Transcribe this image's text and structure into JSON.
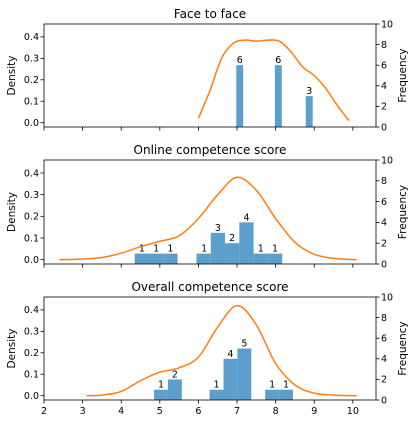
{
  "chart_data": [
    {
      "type": "bar",
      "title": "Face to face",
      "ylabel_left": "Density",
      "ylabel_right": "Frequency",
      "ylim_left": [
        -0.02,
        0.46
      ],
      "yticks_left": [
        "0.0",
        "0.1",
        "0.2",
        "0.3",
        "0.4"
      ],
      "ylim_right": [
        0,
        10
      ],
      "yticks_right": [
        "0",
        "2",
        "4",
        "6",
        "8",
        "10"
      ],
      "xlim": [
        2,
        10.6
      ],
      "bars": [
        {
          "x0": 6.98,
          "x1": 7.16,
          "count": 6,
          "label": "6"
        },
        {
          "x0": 7.98,
          "x1": 8.16,
          "count": 6,
          "label": "6"
        },
        {
          "x0": 8.78,
          "x1": 8.96,
          "count": 3,
          "label": "3"
        }
      ],
      "density": {
        "x": [
          6.0,
          6.3,
          6.6,
          6.9,
          7.2,
          7.5,
          7.8,
          8.1,
          8.4,
          8.7,
          9.0,
          9.3,
          9.6,
          9.9
        ],
        "y": [
          0.02,
          0.15,
          0.3,
          0.37,
          0.385,
          0.38,
          0.385,
          0.38,
          0.33,
          0.26,
          0.22,
          0.16,
          0.08,
          0.01
        ]
      }
    },
    {
      "type": "bar",
      "title": "Online competence score",
      "ylabel_left": "Density",
      "ylabel_right": "Frequency",
      "ylim_left": [
        -0.02,
        0.46
      ],
      "yticks_left": [
        "0.0",
        "0.1",
        "0.2",
        "0.3",
        "0.4"
      ],
      "ylim_right": [
        0,
        10
      ],
      "yticks_right": [
        "0",
        "2",
        "4",
        "6",
        "8",
        "10"
      ],
      "xlim": [
        2,
        10.6
      ],
      "bars": [
        {
          "x0": 4.35,
          "x1": 4.72,
          "count": 1,
          "label": "1"
        },
        {
          "x0": 4.72,
          "x1": 5.09,
          "count": 1,
          "label": "1"
        },
        {
          "x0": 5.09,
          "x1": 5.46,
          "count": 1,
          "label": "1"
        },
        {
          "x0": 5.95,
          "x1": 6.32,
          "count": 1,
          "label": ""
        },
        {
          "x0": 6.32,
          "x1": 6.69,
          "count": 3,
          "label": "3"
        },
        {
          "x0": 6.69,
          "x1": 7.06,
          "count": 2,
          "label": "2"
        },
        {
          "x0": 7.06,
          "x1": 7.43,
          "count": 4,
          "label": "4"
        },
        {
          "x0": 7.43,
          "x1": 7.8,
          "count": 1,
          "label": "1"
        },
        {
          "x0": 7.8,
          "x1": 8.17,
          "count": 1,
          "label": "1"
        }
      ],
      "density": {
        "x": [
          2.4,
          3.0,
          3.5,
          4.0,
          4.5,
          5.0,
          5.5,
          6.0,
          6.5,
          7.0,
          7.5,
          8.0,
          8.5,
          9.0,
          9.5,
          10.1
        ],
        "y": [
          0.0,
          0.003,
          0.01,
          0.03,
          0.06,
          0.085,
          0.11,
          0.19,
          0.3,
          0.38,
          0.32,
          0.19,
          0.08,
          0.025,
          0.006,
          0.0
        ]
      },
      "extra_labels": [
        {
          "x": 6.15,
          "label": "1"
        }
      ]
    },
    {
      "type": "bar",
      "title": "Overall competence score",
      "ylabel_left": "Density",
      "ylabel_right": "Frequency",
      "ylim_left": [
        -0.02,
        0.46
      ],
      "yticks_left": [
        "0.0",
        "0.1",
        "0.2",
        "0.3",
        "0.4"
      ],
      "ylim_right": [
        0,
        10
      ],
      "yticks_right": [
        "0",
        "2",
        "4",
        "6",
        "8",
        "10"
      ],
      "xlim": [
        2,
        10.6
      ],
      "xticks": [
        "2",
        "3",
        "4",
        "5",
        "6",
        "7",
        "8",
        "9",
        "10"
      ],
      "bars": [
        {
          "x0": 4.85,
          "x1": 5.21,
          "count": 1,
          "label": "1"
        },
        {
          "x0": 5.21,
          "x1": 5.57,
          "count": 2,
          "label": "2"
        },
        {
          "x0": 6.29,
          "x1": 6.65,
          "count": 1,
          "label": "1"
        },
        {
          "x0": 6.65,
          "x1": 7.01,
          "count": 4,
          "label": "4"
        },
        {
          "x0": 7.01,
          "x1": 7.37,
          "count": 5,
          "label": "5"
        },
        {
          "x0": 7.73,
          "x1": 8.09,
          "count": 1,
          "label": "1"
        },
        {
          "x0": 8.09,
          "x1": 8.45,
          "count": 1,
          "label": "1"
        }
      ],
      "density": {
        "x": [
          3.1,
          3.5,
          4.0,
          4.5,
          5.0,
          5.5,
          6.0,
          6.5,
          7.0,
          7.5,
          8.0,
          8.5,
          9.0,
          9.5,
          10.1
        ],
        "y": [
          0.0,
          0.003,
          0.02,
          0.07,
          0.11,
          0.13,
          0.18,
          0.32,
          0.42,
          0.33,
          0.15,
          0.05,
          0.012,
          0.003,
          0.0
        ]
      }
    }
  ],
  "style": {
    "bar_color": "#5c9fcc",
    "line_color": "#ff7f0e",
    "axis_color": "#000000"
  }
}
